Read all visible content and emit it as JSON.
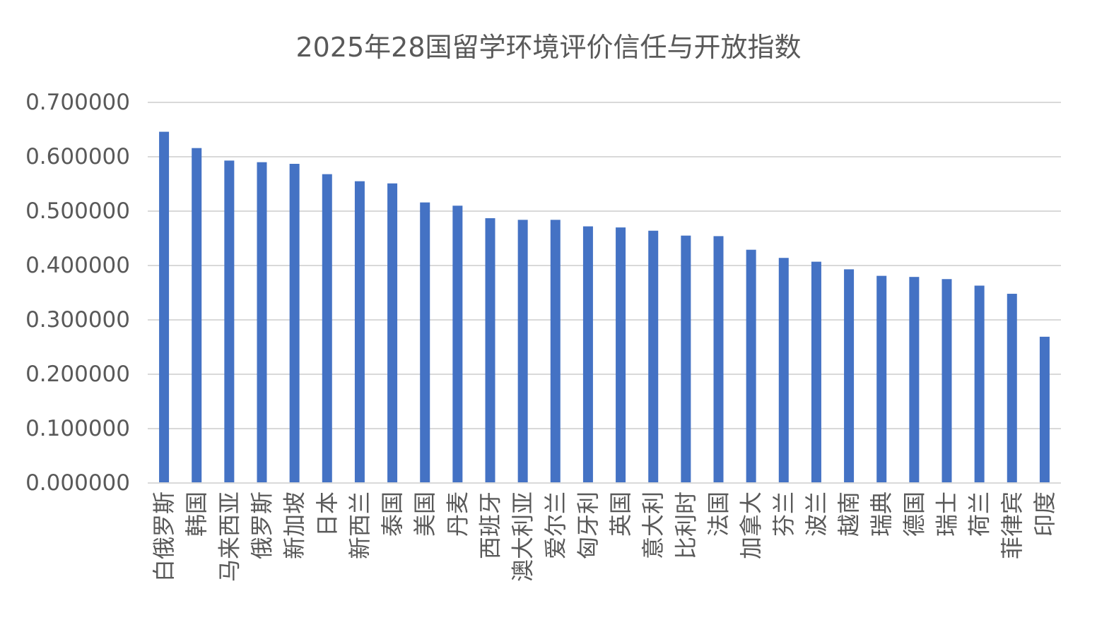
{
  "chart_data": {
    "type": "bar",
    "title": "2025年28国留学环境评价信任与开放指数",
    "xlabel": "",
    "ylabel": "",
    "ylim": [
      0,
      0.7
    ],
    "ytick_step": 0.1,
    "ytick_labels": [
      "0.000000",
      "0.100000",
      "0.200000",
      "0.300000",
      "0.400000",
      "0.500000",
      "0.600000",
      "0.700000"
    ],
    "grid": true,
    "legend": "none",
    "bar_color": "#4472C4",
    "categories": [
      "白俄罗斯",
      "韩国",
      "马来西亚",
      "俄罗斯",
      "新加坡",
      "日本",
      "新西兰",
      "泰国",
      "美国",
      "丹麦",
      "西班牙",
      "澳大利亚",
      "爱尔兰",
      "匈牙利",
      "英国",
      "意大利",
      "比利时",
      "法国",
      "加拿大",
      "芬兰",
      "波兰",
      "越南",
      "瑞典",
      "德国",
      "瑞士",
      "荷兰",
      "菲律宾",
      "印度"
    ],
    "values": [
      0.646,
      0.616,
      0.593,
      0.59,
      0.587,
      0.568,
      0.555,
      0.551,
      0.516,
      0.51,
      0.487,
      0.484,
      0.484,
      0.472,
      0.47,
      0.464,
      0.455,
      0.454,
      0.429,
      0.414,
      0.407,
      0.393,
      0.381,
      0.379,
      0.375,
      0.363,
      0.348,
      0.269
    ]
  }
}
